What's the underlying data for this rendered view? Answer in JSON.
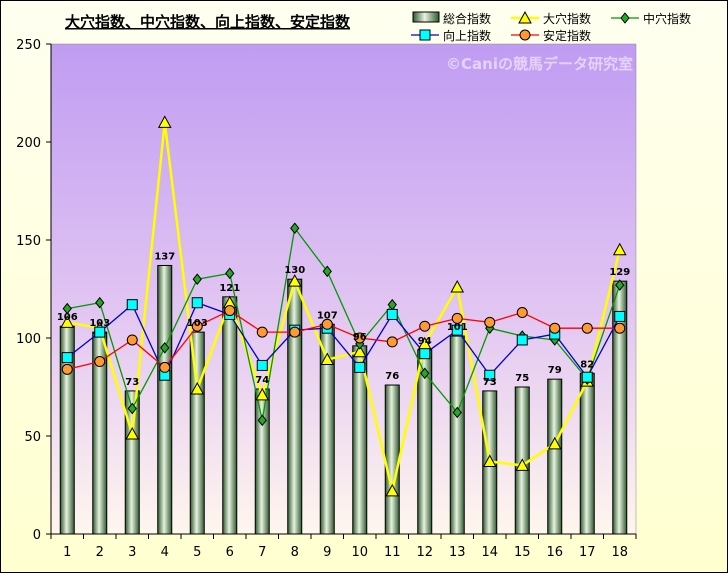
{
  "chart_data": {
    "type": "bar+line",
    "title": "大穴指数、中穴指数、向上指数、安定指数",
    "watermark": "©Caniの競馬データ研究室",
    "categories": [
      "1",
      "2",
      "3",
      "4",
      "5",
      "6",
      "7",
      "8",
      "9",
      "10",
      "11",
      "12",
      "13",
      "14",
      "15",
      "16",
      "17",
      "18"
    ],
    "ylim": [
      0,
      250
    ],
    "yticks": [
      0,
      50,
      100,
      150,
      200,
      250
    ],
    "grid": false,
    "legend_position": "top-right",
    "series": [
      {
        "name": "総合指数",
        "type": "bar",
        "color": "#8fb88f",
        "values": [
          106,
          103,
          73,
          137,
          103,
          121,
          74,
          130,
          107,
          96,
          76,
          94,
          101,
          73,
          75,
          79,
          82,
          129
        ],
        "labels": [
          "106",
          "103",
          "73",
          "137",
          "103",
          "121",
          "74",
          "130",
          "107",
          "96",
          "76",
          "94",
          "101",
          "73",
          "75",
          "79",
          "82",
          "129"
        ]
      },
      {
        "name": "大穴指数",
        "type": "line",
        "color": "#ffff00",
        "marker": "triangle",
        "values": [
          108,
          105,
          51,
          210,
          74,
          118,
          71,
          129,
          89,
          93,
          22,
          97,
          126,
          37,
          35,
          46,
          78,
          145
        ]
      },
      {
        "name": "中穴指数",
        "type": "line",
        "color": "#009900",
        "marker": "diamond",
        "values": [
          115,
          118,
          64,
          95,
          130,
          133,
          58,
          156,
          134,
          97,
          117,
          82,
          62,
          105,
          101,
          99,
          79,
          127
        ]
      },
      {
        "name": "向上指数",
        "type": "line",
        "color": "#0000cc",
        "marker": "square",
        "values": [
          90,
          103,
          117,
          81,
          118,
          112,
          86,
          104,
          105,
          85,
          112,
          92,
          104,
          81,
          99,
          102,
          80,
          111
        ]
      },
      {
        "name": "安定指数",
        "type": "line",
        "color": "#ff0000",
        "marker": "circle",
        "values": [
          84,
          88,
          99,
          85,
          106,
          114,
          103,
          103,
          107,
          100,
          98,
          106,
          110,
          108,
          113,
          105,
          105,
          105
        ]
      }
    ]
  }
}
